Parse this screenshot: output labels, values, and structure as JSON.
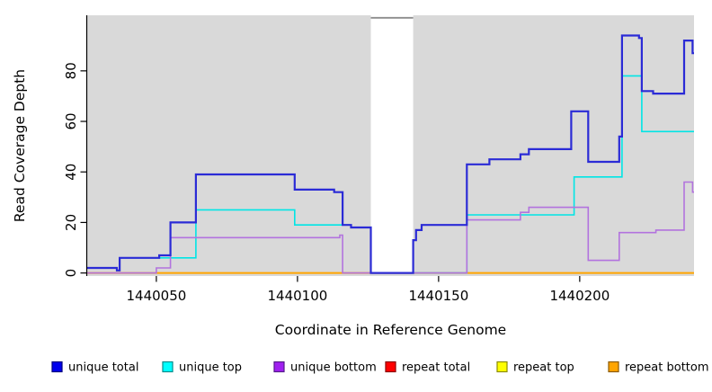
{
  "chart_data": {
    "type": "line",
    "subtype": "step-coverage-plot",
    "title": "",
    "xlabel": "Coordinate in Reference Genome",
    "ylabel": "Read Coverage Depth",
    "xlim": [
      1440025.5,
      1440240.5
    ],
    "ylim": [
      -1.2,
      102
    ],
    "x_ticks": [
      1440050,
      1440100,
      1440150,
      1440200
    ],
    "x_tick_labels": [
      "1440050",
      "1440100",
      "1440150",
      "1440200"
    ],
    "y_ticks": [
      0,
      20,
      40,
      60,
      80
    ],
    "y_tick_labels": [
      "0",
      "20",
      "40",
      "60",
      "80"
    ],
    "grid": false,
    "plot_background": "#D9D9D9",
    "axis_color": "#000000",
    "gap_region": {
      "x_start": 1440126,
      "x_end": 1440141,
      "fill": "#FFFFFF",
      "top_border_color": "#8C8C8C"
    },
    "legend_position": "bottom",
    "series": [
      {
        "name": "repeat total",
        "color": "#E60000",
        "width": 1.2,
        "steps": [
          [
            1440025.5,
            0
          ]
        ]
      },
      {
        "name": "repeat top",
        "color": "#FFFF00",
        "width": 1.2,
        "steps": [
          [
            1440025.5,
            0
          ]
        ]
      },
      {
        "name": "repeat bottom",
        "color": "#FFA500",
        "width": 2,
        "steps": [
          [
            1440025.5,
            0
          ]
        ]
      },
      {
        "name": "unique top",
        "color": "#00E5E5",
        "width": 1.6,
        "steps": [
          [
            1440025.5,
            2
          ],
          [
            1440036,
            1
          ],
          [
            1440037,
            6
          ],
          [
            1440064,
            25
          ],
          [
            1440099,
            19
          ],
          [
            1440119,
            18
          ],
          [
            1440126,
            0
          ],
          [
            1440160,
            23
          ],
          [
            1440198,
            38
          ],
          [
            1440215,
            78
          ],
          [
            1440222,
            56
          ]
        ]
      },
      {
        "name": "unique bottom",
        "color": "#B273DE",
        "width": 1.6,
        "steps": [
          [
            1440025.5,
            0
          ],
          [
            1440050,
            2
          ],
          [
            1440055,
            14
          ],
          [
            1440115,
            15
          ],
          [
            1440116,
            0
          ],
          [
            1440160,
            21
          ],
          [
            1440179,
            24
          ],
          [
            1440182,
            26
          ],
          [
            1440203,
            5
          ],
          [
            1440214,
            16
          ],
          [
            1440227,
            17
          ],
          [
            1440237,
            36
          ],
          [
            1440240,
            32
          ]
        ]
      },
      {
        "name": "unique total",
        "color": "#2B2BD6",
        "width": 2.2,
        "steps": [
          [
            1440025.5,
            2
          ],
          [
            1440036,
            1
          ],
          [
            1440037,
            6
          ],
          [
            1440051,
            7
          ],
          [
            1440055,
            20
          ],
          [
            1440064,
            39
          ],
          [
            1440099,
            33
          ],
          [
            1440113,
            32
          ],
          [
            1440116,
            19
          ],
          [
            1440119,
            18
          ],
          [
            1440126,
            0
          ],
          [
            1440141,
            13
          ],
          [
            1440142,
            17
          ],
          [
            1440144,
            19
          ],
          [
            1440160,
            43
          ],
          [
            1440168,
            45
          ],
          [
            1440179,
            47
          ],
          [
            1440182,
            49
          ],
          [
            1440197,
            64
          ],
          [
            1440203,
            44
          ],
          [
            1440214,
            54
          ],
          [
            1440215,
            94
          ],
          [
            1440221,
            93
          ],
          [
            1440222,
            72
          ],
          [
            1440226,
            71
          ],
          [
            1440237,
            92
          ],
          [
            1440240,
            87
          ]
        ]
      }
    ]
  },
  "legend": {
    "items": [
      {
        "label": "unique total",
        "swatch_fill": "#0000EE",
        "swatch_border": "#000080"
      },
      {
        "label": "unique top",
        "swatch_fill": "#00FFFF",
        "swatch_border": "#008B8B"
      },
      {
        "label": "unique bottom",
        "swatch_fill": "#A020F0",
        "swatch_border": "#551A8B"
      },
      {
        "label": "repeat total",
        "swatch_fill": "#FF0000",
        "swatch_border": "#8B0000"
      },
      {
        "label": "repeat top",
        "swatch_fill": "#FFFF00",
        "swatch_border": "#8B8B00"
      },
      {
        "label": "repeat bottom",
        "swatch_fill": "#FFA500",
        "swatch_border": "#8B5A00"
      }
    ]
  }
}
